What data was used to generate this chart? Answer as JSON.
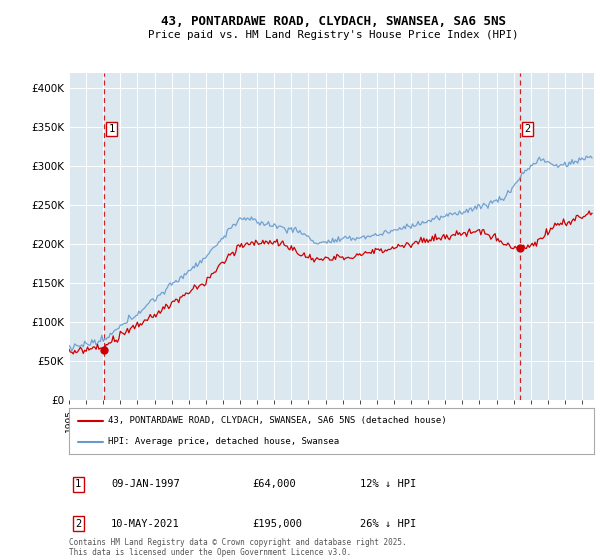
{
  "title_line1": "43, PONTARDAWE ROAD, CLYDACH, SWANSEA, SA6 5NS",
  "title_line2": "Price paid vs. HM Land Registry's House Price Index (HPI)",
  "legend_label1": "43, PONTARDAWE ROAD, CLYDACH, SWANSEA, SA6 5NS (detached house)",
  "legend_label2": "HPI: Average price, detached house, Swansea",
  "footnote": "Contains HM Land Registry data © Crown copyright and database right 2025.\nThis data is licensed under the Open Government Licence v3.0.",
  "annotation1": {
    "label": "1",
    "date": "09-JAN-1997",
    "price": "£64,000",
    "note": "12% ↓ HPI"
  },
  "annotation2": {
    "label": "2",
    "date": "10-MAY-2021",
    "price": "£195,000",
    "note": "26% ↓ HPI"
  },
  "price_color": "#cc0000",
  "hpi_color": "#6699cc",
  "background_color": "#dce8f0",
  "ylim": [
    0,
    420000
  ],
  "yticks": [
    0,
    50000,
    100000,
    150000,
    200000,
    250000,
    300000,
    350000,
    400000
  ],
  "ytick_labels": [
    "£0",
    "£50K",
    "£100K",
    "£150K",
    "£200K",
    "£250K",
    "£300K",
    "£350K",
    "£400K"
  ],
  "sale1_x": 1997.05,
  "sale1_y": 64000,
  "sale2_x": 2021.37,
  "sale2_y": 195000,
  "xmin": 1995.0,
  "xmax": 2025.7
}
